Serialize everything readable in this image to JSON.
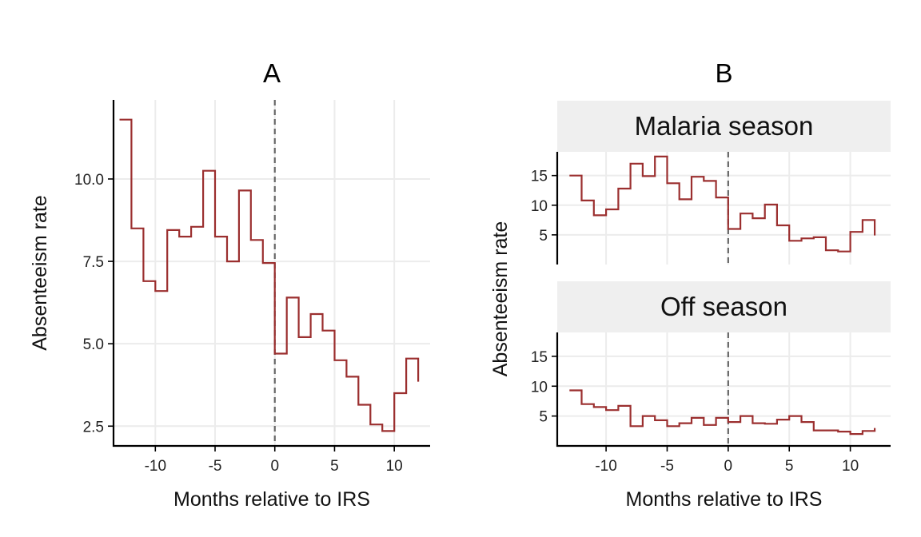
{
  "colors": {
    "line": "#9b2f2f",
    "strip_bg": "#efefef",
    "grid": "#ececec",
    "refline": "#666666"
  },
  "chart_data": [
    {
      "panel": "A",
      "type": "line",
      "step": "hv",
      "title": "A",
      "xlabel": "Months relative to IRS",
      "ylabel": "Absenteeism rate",
      "xlim": [
        -13.5,
        13
      ],
      "ylim": [
        1.9,
        12.4
      ],
      "xticks": [
        -10,
        -5,
        0,
        5,
        10
      ],
      "xtick_labels": [
        "-10",
        "-5",
        "0",
        "5",
        "10"
      ],
      "yticks": [
        2.5,
        5.0,
        7.5,
        10.0
      ],
      "ytick_labels": [
        "2.5",
        "5.0",
        "7.5",
        "10.0"
      ],
      "vline_x": 0,
      "grid": true,
      "x": [
        -13,
        -12,
        -11,
        -10,
        -9,
        -8,
        -7,
        -6,
        -5,
        -4,
        -3,
        -2,
        -1,
        0,
        1,
        2,
        3,
        4,
        5,
        6,
        7,
        8,
        9,
        10,
        11,
        12
      ],
      "y": [
        11.8,
        8.5,
        6.9,
        6.6,
        8.45,
        8.25,
        8.55,
        10.25,
        8.25,
        7.5,
        9.65,
        8.15,
        7.45,
        4.7,
        6.4,
        5.2,
        5.9,
        5.4,
        4.5,
        4.0,
        3.15,
        2.55,
        2.35,
        3.5,
        4.55,
        3.85
      ]
    },
    {
      "panel": "B",
      "type": "line",
      "step": "hv",
      "title": "B",
      "xlabel": "Months relative to IRS",
      "ylabel": "Absenteeism rate",
      "xlim": [
        -14,
        13.3
      ],
      "ylim": [
        0,
        19
      ],
      "xticks": [
        -10,
        -5,
        0,
        5,
        10
      ],
      "xtick_labels": [
        "-10",
        "-5",
        "0",
        "5",
        "10"
      ],
      "yticks": [
        5,
        10,
        15
      ],
      "ytick_labels": [
        "5",
        "10",
        "15"
      ],
      "vline_x": 0,
      "grid": true,
      "facets": [
        {
          "strip": "Malaria season",
          "x": [
            -13,
            -12,
            -11,
            -10,
            -9,
            -8,
            -7,
            -6,
            -5,
            -4,
            -3,
            -2,
            -1,
            0,
            1,
            2,
            3,
            4,
            5,
            6,
            7,
            8,
            9,
            10,
            11,
            12
          ],
          "y": [
            15,
            10.8,
            8.3,
            9.3,
            12.8,
            17,
            14.9,
            18.2,
            13.7,
            11,
            14.8,
            14.1,
            11.3,
            6,
            8.6,
            7.8,
            10.1,
            6.6,
            4,
            4.4,
            4.6,
            2.4,
            2.2,
            5.5,
            7.5,
            4.9
          ]
        },
        {
          "strip": "Off season",
          "x": [
            -13,
            -12,
            -11,
            -10,
            -9,
            -8,
            -7,
            -6,
            -5,
            -4,
            -3,
            -2,
            -1,
            0,
            1,
            2,
            3,
            4,
            5,
            6,
            7,
            8,
            9,
            10,
            11,
            12
          ],
          "y": [
            9.3,
            7,
            6.5,
            6,
            6.7,
            3.3,
            5,
            4.3,
            3.3,
            3.8,
            4.7,
            3.5,
            4.7,
            4,
            5,
            3.8,
            3.7,
            4.4,
            5,
            4,
            2.6,
            2.6,
            2.4,
            2,
            2.5,
            3
          ]
        }
      ]
    }
  ]
}
